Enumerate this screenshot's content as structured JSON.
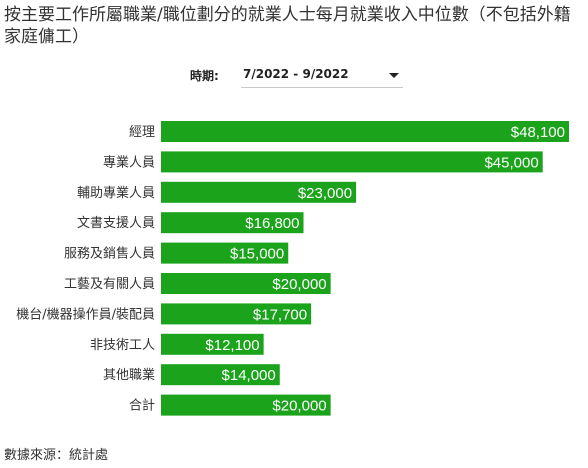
{
  "title": "按主要工作所屬職業/職位劃分的就業人士每月就業收入中位數（不包括外籍家庭傭工）",
  "filter": {
    "label": "時期:",
    "selected": "7/2022 - 9/2022"
  },
  "source": "數據來源：統計處",
  "colors": {
    "bar": "#1ba31b",
    "value_label": "#ffffff"
  },
  "chart_data": {
    "type": "bar",
    "orientation": "horizontal",
    "categories": [
      "經理",
      "專業人員",
      "輔助專業人員",
      "文書支援人員",
      "服務及銷售人員",
      "工藝及有關人員",
      "機台/機器操作員/裝配員",
      "非技術工人",
      "其他職業",
      "合計"
    ],
    "values": [
      48100,
      45000,
      23000,
      16800,
      15000,
      20000,
      17700,
      12100,
      14000,
      20000
    ],
    "value_labels": [
      "$48,100",
      "$45,000",
      "$23,000",
      "$16,800",
      "$15,000",
      "$20,000",
      "$17,700",
      "$12,100",
      "$14,000",
      "$20,000"
    ],
    "xlim": [
      0,
      48100
    ],
    "grid": false,
    "legend": "none"
  }
}
